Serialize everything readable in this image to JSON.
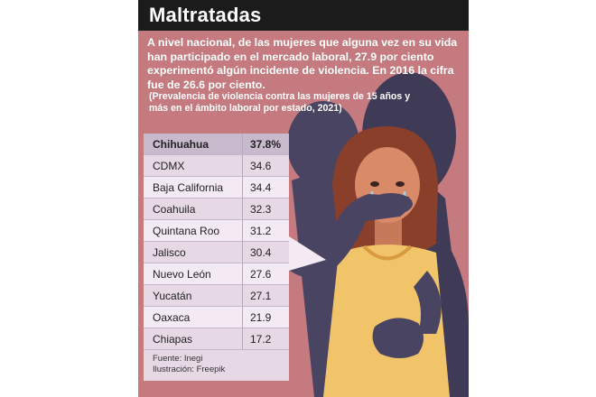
{
  "header": {
    "title": "Maltratadas"
  },
  "intro": {
    "text": "A nivel nacional, de las mujeres que alguna vez en su vida han participado en el mercado laboral, 27.9 por ciento experimentó algún incidente de violencia. En 2016 la cifra fue de 26.6 por ciento.",
    "note": "(Prevalencia de violencia contra las mujeres de 15 años y más en el ámbito laboral por estado, 2021)"
  },
  "table": {
    "rows": [
      {
        "state": "Chihuahua",
        "value": "37.8%"
      },
      {
        "state": "CDMX",
        "value": "34.6"
      },
      {
        "state": "Baja California",
        "value": "34.4"
      },
      {
        "state": "Coahuila",
        "value": "32.3"
      },
      {
        "state": "Quintana Roo",
        "value": "31.2"
      },
      {
        "state": "Jalisco",
        "value": "30.4"
      },
      {
        "state": "Nuevo León",
        "value": "27.6"
      },
      {
        "state": "Yucatán",
        "value": "27.1"
      },
      {
        "state": "Oaxaca",
        "value": "21.9"
      },
      {
        "state": "Chiapas",
        "value": "17.2"
      }
    ]
  },
  "credits": {
    "source": "Fuente: Inegi",
    "illustration": "Ilustración: Freepik"
  },
  "colors": {
    "panel": "#c47a7f",
    "title_bar": "#1b1b1b",
    "shadow_figures": "#3f3a55",
    "skin": "#d98a68",
    "hair": "#8a3f2a",
    "shirt": "#f1c46a"
  }
}
